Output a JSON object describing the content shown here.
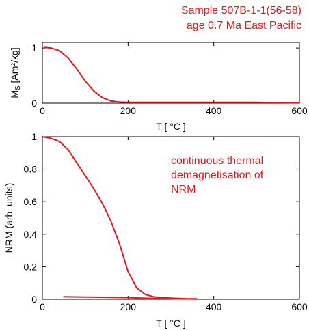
{
  "header": {
    "line1": "Sample 507B-1-1(56-58)",
    "line2": "age 0.7 Ma   East Pacific"
  },
  "colors": {
    "series": "#e8141c",
    "axis": "#000000",
    "background": "#ffffff"
  },
  "chart_data": [
    {
      "type": "line",
      "xlabel": "T [ °C ]",
      "ylabel": "M_S [Am²/kg]",
      "ylabel_parts": {
        "main": "M",
        "sub": "S",
        "unit": " [Am²/kg]"
      },
      "xlim": [
        0,
        600
      ],
      "ylim": [
        0,
        1.1
      ],
      "xticks": [
        0,
        200,
        400,
        600
      ],
      "yticks": [
        0,
        1
      ],
      "grid": false,
      "series": [
        {
          "x": [
            5,
            20,
            40,
            60,
            80,
            100,
            120,
            140,
            160,
            180,
            200,
            300,
            400,
            500,
            600
          ],
          "y": [
            1.01,
            1.0,
            0.95,
            0.82,
            0.62,
            0.4,
            0.22,
            0.1,
            0.04,
            0.02,
            0.015,
            0.015,
            0.015,
            0.015,
            0.01
          ]
        }
      ]
    },
    {
      "type": "line",
      "xlabel": "T [ °C ]",
      "ylabel": "NRM (arb. units)",
      "xlim": [
        0,
        600
      ],
      "ylim": [
        0,
        1
      ],
      "xticks": [
        0,
        200,
        400,
        600
      ],
      "yticks": [
        0,
        0.2,
        0.4,
        0.6,
        0.8,
        1
      ],
      "ytick_labels": [
        "0",
        "0.2",
        "0.4",
        "0.6",
        "0.8",
        "1"
      ],
      "grid": false,
      "annotation": [
        "continuous thermal",
        "demagnetisation of",
        "NRM"
      ],
      "series": [
        {
          "x": [
            0,
            20,
            40,
            60,
            80,
            100,
            120,
            140,
            160,
            180,
            200,
            220,
            240,
            260,
            280,
            300,
            320,
            340,
            360
          ],
          "y": [
            1.0,
            0.99,
            0.97,
            0.92,
            0.84,
            0.76,
            0.68,
            0.59,
            0.48,
            0.34,
            0.17,
            0.07,
            0.03,
            0.015,
            0.01,
            0.007,
            0.005,
            0.003,
            0.003
          ]
        },
        {
          "x": [
            50,
            100,
            150,
            200,
            250,
            300,
            360
          ],
          "y": [
            0.016,
            0.014,
            0.012,
            0.01,
            0.006,
            0.003,
            0.001
          ]
        }
      ]
    }
  ]
}
